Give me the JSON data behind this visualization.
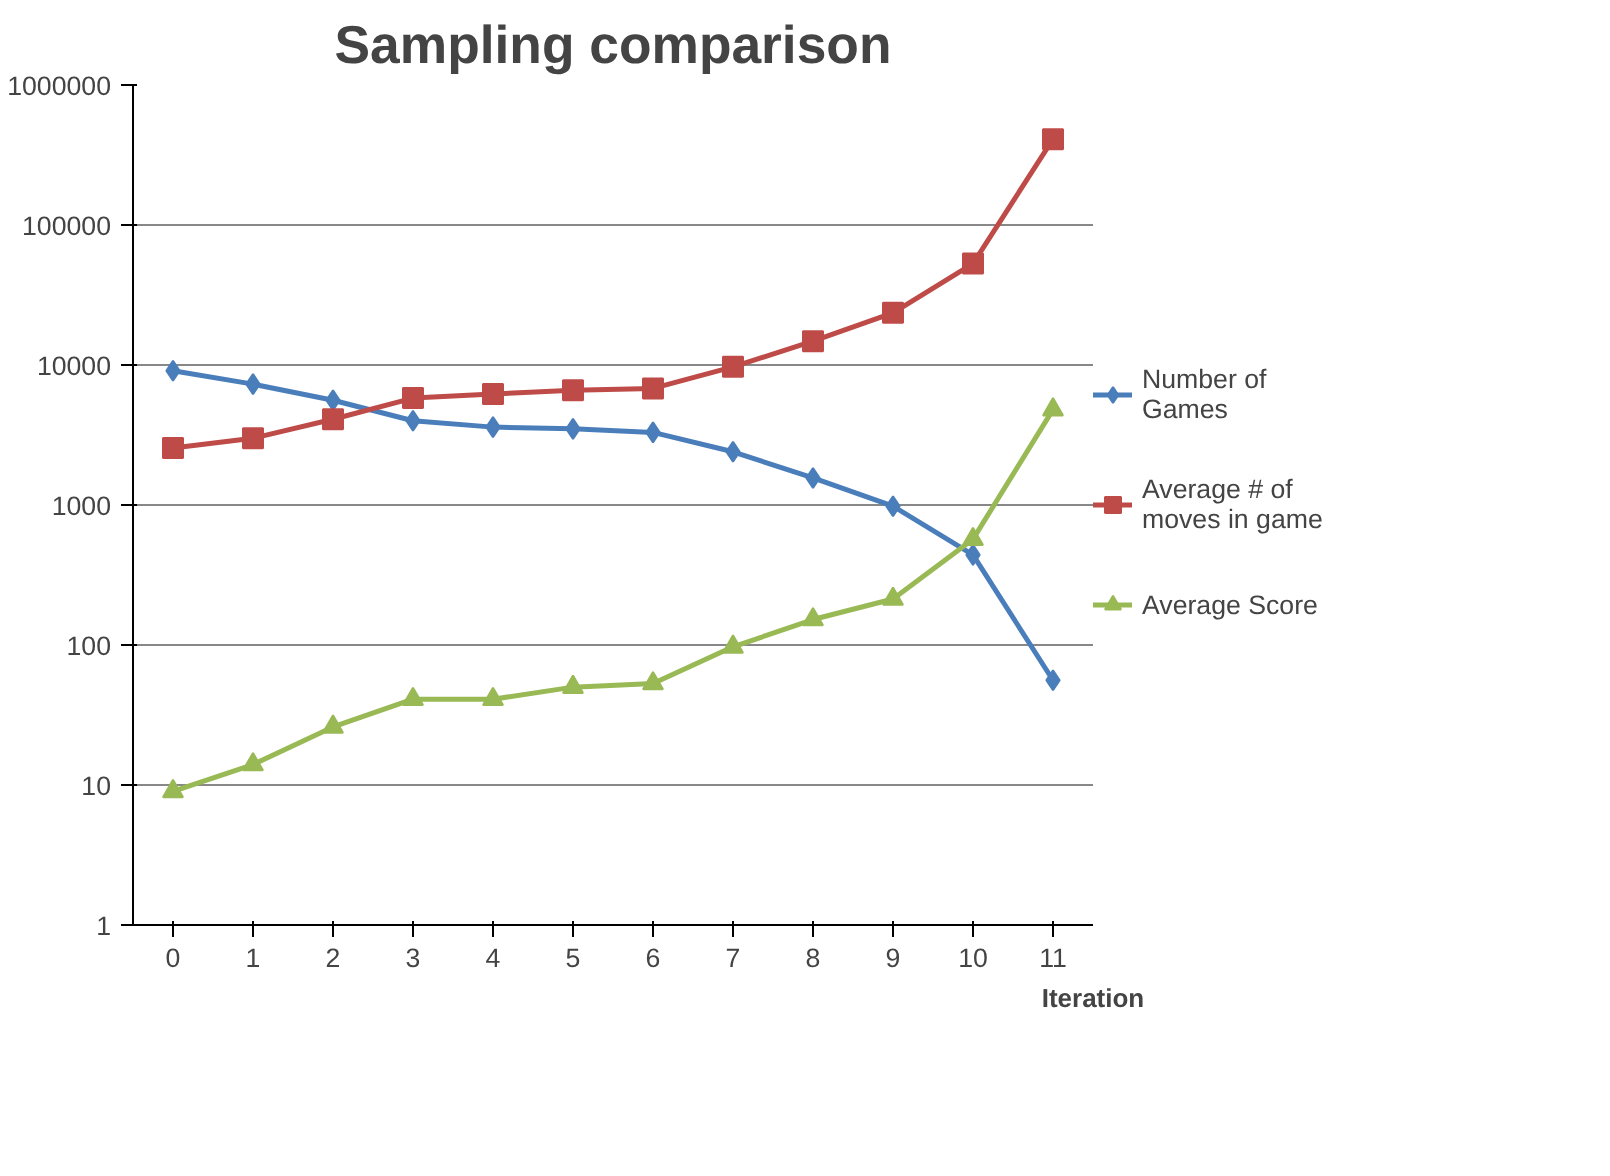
{
  "chart_data": {
    "type": "line",
    "title": "Sampling comparison",
    "xlabel": "Iteration",
    "categories": [
      "0",
      "1",
      "2",
      "3",
      "4",
      "5",
      "6",
      "7",
      "8",
      "9",
      "10",
      "11"
    ],
    "log": "y",
    "ylim": [
      1,
      1000000
    ],
    "yticks": [
      1,
      10,
      100,
      1000,
      10000,
      100000,
      1000000
    ],
    "grid": "y",
    "legend": "right",
    "series": [
      {
        "name": "Number of Games",
        "color": "#4a7ebb",
        "marker": "diamond",
        "values": [
          9100,
          7300,
          5600,
          4000,
          3600,
          3500,
          3300,
          2400,
          1560,
          980,
          440,
          56
        ]
      },
      {
        "name": "Average # of moves in game",
        "color": "#be4b48",
        "marker": "square",
        "values": [
          2550,
          3000,
          4100,
          5800,
          6200,
          6600,
          6800,
          9700,
          14800,
          23600,
          53000,
          410000
        ]
      },
      {
        "name": "Average Score",
        "color": "#98b954",
        "marker": "triangle",
        "values": [
          9,
          14,
          26,
          41,
          41,
          50,
          53,
          97,
          152,
          213,
          570,
          4800
        ]
      }
    ]
  }
}
